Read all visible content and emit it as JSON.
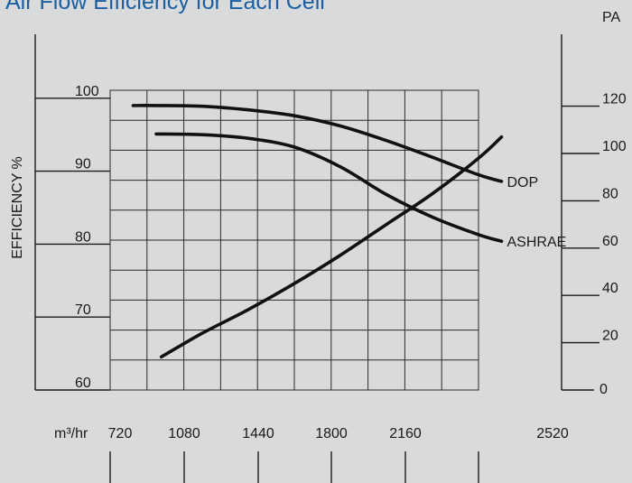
{
  "chart_data": {
    "type": "line",
    "title": "Air Flow Efficiency for Each Cell",
    "x_unit": "m³/hr",
    "x_ticks": [
      "720",
      "1080",
      "1440",
      "1800",
      "2160",
      "2520"
    ],
    "xlim": [
      720,
      2520
    ],
    "left_axis": {
      "label": "EFFICIENCY %",
      "ticks": [
        "60",
        "70",
        "80",
        "90",
        "100"
      ],
      "range": [
        60,
        110
      ]
    },
    "right_axis": {
      "label": "PA",
      "ticks": [
        "0",
        "20",
        "40",
        "60",
        "80",
        "100",
        "120"
      ],
      "range": [
        0,
        130
      ]
    },
    "grid": true,
    "series": [
      {
        "name": "DOP",
        "axis": "left",
        "x": [
          810,
          900,
          1080,
          1260,
          1440,
          1620,
          1800,
          1980,
          2160,
          2250
        ],
        "y": [
          99,
          99,
          98.9,
          98.4,
          97.6,
          96.2,
          94.2,
          91.9,
          89.5,
          88.6
        ]
      },
      {
        "name": "ASHRAE",
        "axis": "left",
        "x": [
          900,
          1080,
          1260,
          1440,
          1620,
          1800,
          1980,
          2160,
          2250
        ],
        "y": [
          95.1,
          95.0,
          94.5,
          93.3,
          90.6,
          86.8,
          83.7,
          81.3,
          80.4
        ]
      },
      {
        "name": "",
        "axis": "right",
        "x": [
          920,
          1080,
          1260,
          1440,
          1620,
          1800,
          1980,
          2160,
          2250
        ],
        "y": [
          14,
          24,
          34,
          45,
          57,
          70,
          83,
          98,
          107
        ]
      }
    ]
  }
}
